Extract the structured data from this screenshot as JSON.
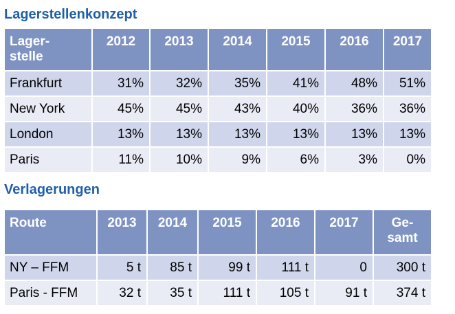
{
  "section1": {
    "title": "Lagerstellenkonzept",
    "header": [
      "Lager-\nstelle",
      "2012",
      "2013",
      "2014",
      "2015",
      "2016",
      "2017"
    ],
    "rows": [
      [
        "Frankfurt",
        "31%",
        "32%",
        "35%",
        "41%",
        "48%",
        "51%"
      ],
      [
        "New York",
        "45%",
        "45%",
        "43%",
        "40%",
        "36%",
        "36%"
      ],
      [
        "London",
        "13%",
        "13%",
        "13%",
        "13%",
        "13%",
        "13%"
      ],
      [
        "Paris",
        "11%",
        "10%",
        "9%",
        "6%",
        "3%",
        "0%"
      ]
    ]
  },
  "section2": {
    "title": "Verlagerungen",
    "header": [
      "Route",
      "2013",
      "2014",
      "2015",
      "2016",
      "2017",
      "Ge-\nsamt"
    ],
    "rows": [
      [
        "NY – FFM",
        "5 t",
        "85 t",
        "99 t",
        "111 t",
        "0",
        "300 t"
      ],
      [
        "Paris - FFM",
        "32 t",
        "35 t",
        "111 t",
        "105 t",
        "91 t",
        "374 t"
      ]
    ]
  },
  "colors": {
    "title": "#1F5FA8",
    "header_bg": "#7F93C3",
    "row_odd": "#CFD5EA",
    "row_even": "#E9EBF5"
  }
}
